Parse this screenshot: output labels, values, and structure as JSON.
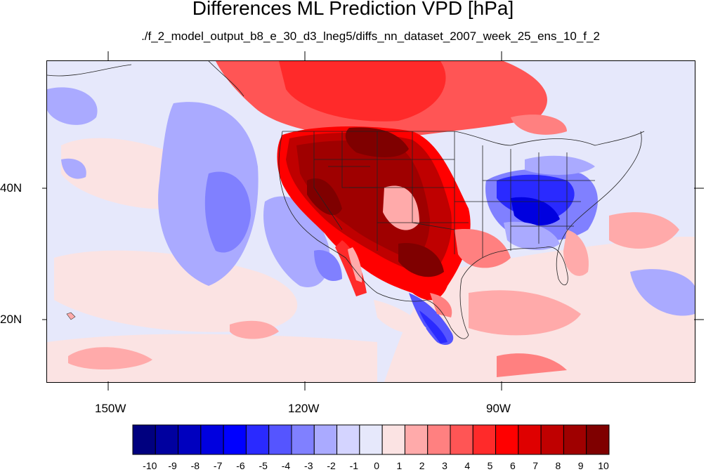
{
  "title": "Differences ML Prediction VPD [hPa]",
  "subtitle": "./f_2_model_output_b8_e_30_d3_lneg5/diffs_nn_dataset_2007_week_25_ens_10_f_2",
  "map": {
    "lat_labels": [
      "40N",
      "20N"
    ],
    "lon_labels": [
      "150W",
      "120W",
      "90W"
    ]
  },
  "colorbar": {
    "labels": [
      "-10",
      "-9",
      "-8",
      "-7",
      "-6",
      "-5",
      "-4",
      "-3",
      "-2",
      "-1",
      "0",
      "1",
      "2",
      "3",
      "4",
      "5",
      "6",
      "7",
      "8",
      "9",
      "10"
    ],
    "colors": [
      "#00007f",
      "#00009f",
      "#0000bf",
      "#0000df",
      "#0000ff",
      "#2a2aff",
      "#5555ff",
      "#8080ff",
      "#aaaaff",
      "#d4d4ff",
      "#e6e8fb",
      "#fbe3e3",
      "#ffaaaa",
      "#ff8080",
      "#ff5555",
      "#ff2a2a",
      "#ff0000",
      "#df0000",
      "#bf0000",
      "#9f0000",
      "#7f0000"
    ]
  }
}
